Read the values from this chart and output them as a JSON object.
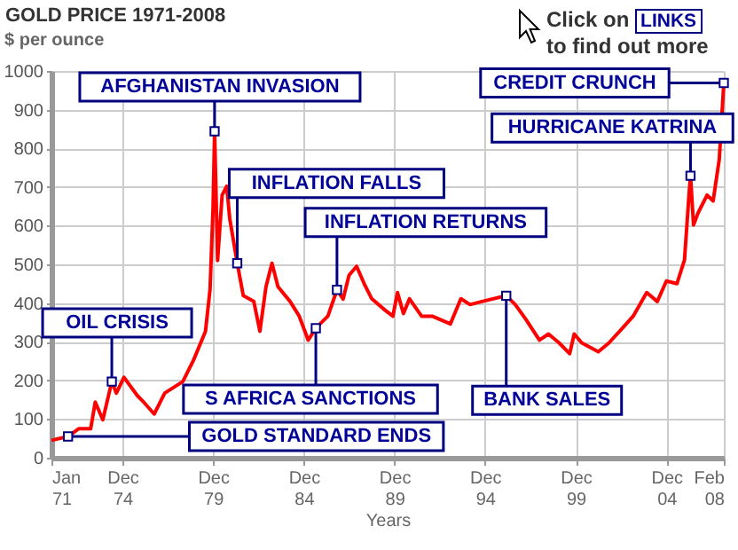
{
  "chart_data": {
    "type": "line",
    "title": "GOLD PRICE 1971-2008",
    "ylabel": "$ per ounce",
    "xlabel": "Years",
    "x": [
      "1971-01",
      "1971-12",
      "1972-07",
      "1973-03",
      "1973-06",
      "1973-11",
      "1974-05",
      "1974-08",
      "1975-01",
      "1975-10",
      "1976-02",
      "1976-09",
      "1977-04",
      "1978-04",
      "1978-11",
      "1979-07",
      "1979-10",
      "1979-12",
      "1980-01",
      "1980-03",
      "1980-06",
      "1980-09",
      "1980-11",
      "1981-04",
      "1981-08",
      "1982-03",
      "1982-07",
      "1982-11",
      "1983-03",
      "1983-07",
      "1984-03",
      "1984-09",
      "1985-03",
      "1985-08",
      "1986-04",
      "1986-10",
      "1987-02",
      "1987-06",
      "1987-11",
      "1988-04",
      "1988-09",
      "1989-06",
      "1989-11",
      "1990-02",
      "1990-06",
      "1990-10",
      "1991-06",
      "1992-01",
      "1993-01",
      "1993-08",
      "1994-02",
      "1994-10",
      "1996-02",
      "1996-08",
      "1997-03",
      "1997-12",
      "1998-06",
      "1999-01",
      "1999-08",
      "1999-11",
      "2000-04",
      "2001-03",
      "2001-10",
      "2002-07",
      "2003-02",
      "2003-11",
      "2004-06",
      "2004-12",
      "2005-07",
      "2005-12",
      "2006-03",
      "2006-04",
      "2006-06",
      "2006-09",
      "2007-03",
      "2007-07",
      "2007-11",
      "2008-02"
    ],
    "series": [
      {
        "color": "#ff0000",
        "values": [
          45,
          55,
          75,
          75,
          144,
          98,
          197,
          167,
          208,
          160,
          144,
          113,
          167,
          197,
          252,
          327,
          435,
          648,
          844,
          510,
          679,
          702,
          618,
          503,
          419,
          404,
          327,
          442,
          503,
          442,
          404,
          366,
          304,
          335,
          366,
          434,
          410,
          472,
          495,
          450,
          411,
          381,
          366,
          427,
          373,
          411,
          366,
          366,
          346,
          411,
          396,
          404,
          419,
          396,
          358,
          304,
          320,
          297,
          269,
          320,
          297,
          274,
          297,
          335,
          366,
          427,
          404,
          457,
          450,
          511,
          679,
          729,
          602,
          633,
          679,
          664,
          771,
          969
        ]
      }
    ],
    "xlim": [
      "1971-01",
      "2008-02"
    ],
    "xticks": [
      {
        "value": "1971-01",
        "label": "Jan 71"
      },
      {
        "value": "1974-12",
        "label": "Dec 74"
      },
      {
        "value": "1979-12",
        "label": "Dec 79"
      },
      {
        "value": "1984-12",
        "label": "Dec 84"
      },
      {
        "value": "1989-12",
        "label": "Dec 89"
      },
      {
        "value": "1994-12",
        "label": "Dec 94"
      },
      {
        "value": "1999-12",
        "label": "Dec 99"
      },
      {
        "value": "2004-12",
        "label": "Dec 04"
      },
      {
        "value": "2008-02",
        "label": "Feb 08"
      }
    ],
    "ylim": [
      0,
      1000
    ],
    "yticks": [
      0,
      100,
      200,
      300,
      400,
      500,
      600,
      700,
      800,
      900,
      1000
    ],
    "grid": true,
    "legend": false,
    "annotations": [
      {
        "text": "OIL CRISIS",
        "x": "1974-05",
        "y": 197
      },
      {
        "text": "GOLD STANDARD ENDS",
        "x": "1971-12",
        "y": 55
      },
      {
        "text": "AFGHANISTAN INVASION",
        "x": "1980-01",
        "y": 844
      },
      {
        "text": "INFLATION FALLS",
        "x": "1981-04",
        "y": 503
      },
      {
        "text": "INFLATION RETURNS",
        "x": "1986-10",
        "y": 434
      },
      {
        "text": "S AFRICA SANCTIONS",
        "x": "1985-08",
        "y": 335
      },
      {
        "text": "BANK SALES",
        "x": "1996-02",
        "y": 419
      },
      {
        "text": "HURRICANE KATRINA",
        "x": "2006-04",
        "y": 729
      },
      {
        "text": "CREDIT CRUNCH",
        "x": "2008-02",
        "y": 969
      },
      "Click on LINKS to find out more"
    ]
  }
}
